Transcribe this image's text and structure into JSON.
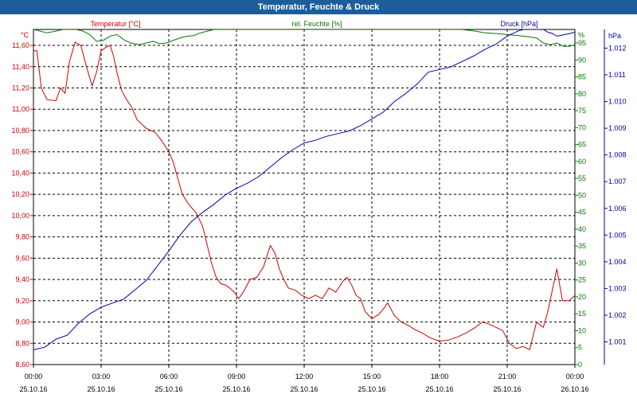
{
  "window": {
    "title": "Temperatur, Feuchte & Druck"
  },
  "colors": {
    "temp": "#cc0000",
    "hum": "#007a00",
    "press": "#0000aa",
    "title_bg": "#1c5e9c"
  },
  "chart_data": {
    "type": "line",
    "title": "Temperatur, Feuchte & Druck",
    "grid": true,
    "legend": "top",
    "x_ticks": [
      {
        "time": "00:00",
        "date": "25.10.16"
      },
      {
        "time": "03:00",
        "date": "25.10.16"
      },
      {
        "time": "06:00",
        "date": "25.10.16"
      },
      {
        "time": "09:00",
        "date": "25.10.16"
      },
      {
        "time": "12:00",
        "date": "25.10.16"
      },
      {
        "time": "15:00",
        "date": "25.10.16"
      },
      {
        "time": "18:00",
        "date": "25.10.16"
      },
      {
        "time": "21:00",
        "date": "25.10.16"
      },
      {
        "time": "00:00",
        "date": "26.10.16"
      }
    ],
    "axes": {
      "temperature": {
        "unit": "°C",
        "label": "Temperatur [°C]",
        "range": [
          8.6,
          11.75
        ],
        "ticks": [
          "8,60",
          "8,80",
          "9,00",
          "9,20",
          "9,40",
          "9,60",
          "9,80",
          "10,00",
          "10,20",
          "10,40",
          "10,60",
          "10,80",
          "11,00",
          "11,20",
          "11,40",
          "11,60"
        ]
      },
      "humidity": {
        "unit": "%",
        "label": "rel. Feuchte [%]",
        "range": [
          0,
          99
        ],
        "ticks": [
          "0",
          "5",
          "10",
          "15",
          "20",
          "25",
          "30",
          "35",
          "40",
          "45",
          "50",
          "55",
          "60",
          "65",
          "70",
          "75",
          "80",
          "85",
          "90",
          "95"
        ],
        "top_unit_label": "%"
      },
      "pressure": {
        "unit": "hPa",
        "label": "Druck [hPa]",
        "range": [
          1000.15,
          1012.7
        ],
        "ticks": [
          "1.001",
          "1.002",
          "1.003",
          "1.004",
          "1.005",
          "1.006",
          "1.007",
          "1.008",
          "1.009",
          "1.010",
          "1.011",
          "1.012"
        ],
        "tick_values": [
          1001,
          1002,
          1003,
          1004,
          1005,
          1006,
          1007,
          1008,
          1009,
          1010,
          1011,
          1012
        ]
      }
    },
    "series": [
      {
        "name": "Temperatur [°C]",
        "axis": "temperature",
        "x_hours": [
          0,
          0.15,
          0.35,
          0.6,
          1.0,
          1.2,
          1.4,
          1.6,
          1.85,
          2.1,
          2.35,
          2.6,
          2.8,
          3.0,
          3.2,
          3.4,
          3.55,
          3.7,
          3.9,
          4.1,
          4.35,
          4.6,
          5.0,
          5.4,
          5.7,
          6.0,
          6.2,
          6.4,
          6.6,
          6.9,
          7.2,
          7.5,
          7.9,
          8.1,
          8.3,
          8.5,
          8.7,
          8.9,
          9.1,
          9.3,
          9.6,
          9.9,
          10.2,
          10.5,
          10.7,
          10.9,
          11.1,
          11.3,
          11.6,
          11.9,
          12.2,
          12.5,
          12.8,
          13.1,
          13.4,
          13.7,
          13.9,
          14.1,
          14.3,
          14.5,
          14.7,
          15.0,
          15.3,
          15.5,
          15.7,
          16.0,
          16.3,
          16.6,
          16.9,
          17.2,
          17.6,
          18.0,
          18.4,
          18.8,
          19.2,
          19.6,
          19.9,
          20.2,
          20.5,
          20.8,
          21.1,
          21.4,
          21.7,
          22.0,
          22.3,
          22.6,
          22.8,
          23.0,
          23.2,
          23.45,
          23.6,
          23.75,
          24.0
        ],
        "values": [
          11.55,
          11.55,
          11.2,
          11.09,
          11.08,
          11.2,
          11.15,
          11.45,
          11.63,
          11.6,
          11.4,
          11.22,
          11.35,
          11.55,
          11.58,
          11.6,
          11.5,
          11.35,
          11.18,
          11.1,
          11.02,
          10.9,
          10.82,
          10.78,
          10.7,
          10.6,
          10.5,
          10.35,
          10.2,
          10.1,
          10.03,
          9.9,
          9.55,
          9.42,
          9.36,
          9.35,
          9.32,
          9.28,
          9.22,
          9.28,
          9.4,
          9.42,
          9.52,
          9.72,
          9.65,
          9.5,
          9.4,
          9.32,
          9.3,
          9.25,
          9.22,
          9.25,
          9.22,
          9.32,
          9.28,
          9.38,
          9.42,
          9.35,
          9.25,
          9.22,
          9.1,
          9.03,
          9.07,
          9.12,
          9.18,
          9.06,
          9.0,
          8.97,
          8.93,
          8.9,
          8.85,
          8.82,
          8.83,
          8.86,
          8.9,
          8.95,
          9.0,
          8.98,
          8.95,
          8.92,
          8.8,
          8.75,
          8.77,
          8.74,
          9.0,
          8.95,
          9.1,
          9.3,
          9.5,
          9.2,
          9.2,
          9.2,
          9.25
        ]
      },
      {
        "name": "rel. Feuchte [%]",
        "axis": "humidity",
        "x_hours": [
          0,
          0.6,
          1.0,
          1.3,
          1.6,
          1.9,
          2.2,
          2.5,
          2.8,
          3.1,
          3.4,
          3.7,
          4.0,
          4.3,
          4.7,
          5.0,
          5.3,
          5.6,
          5.9,
          6.2,
          6.5,
          6.8,
          7.1,
          7.4,
          7.7,
          8.0,
          8.3,
          8.6,
          9.0,
          9.5,
          10.0,
          10.5,
          11.0,
          11.5,
          12.0,
          13.0,
          14.0,
          15.0,
          16.0,
          17.0,
          18.0,
          19.0,
          19.6,
          20.0,
          20.5,
          21.0,
          21.5,
          22.0,
          22.3,
          22.6,
          22.9,
          23.2,
          23.5,
          23.75,
          24.0
        ],
        "values": [
          99,
          98,
          98.5,
          99,
          99,
          99,
          98.5,
          97.5,
          95.5,
          95.8,
          97,
          97.5,
          96,
          95,
          94.5,
          95,
          95.5,
          94.8,
          95,
          95.8,
          96.5,
          97,
          97.2,
          98,
          98.5,
          99,
          99,
          99,
          99,
          99,
          99,
          99,
          99,
          99,
          99,
          99,
          99,
          99,
          99,
          99,
          99,
          99,
          98.5,
          98,
          97.8,
          97.5,
          97.2,
          96.8,
          96.5,
          95,
          94.5,
          95,
          94,
          94,
          94.5
        ]
      },
      {
        "name": "Druck [hPa]",
        "axis": "pressure",
        "x_hours": [
          0,
          0.5,
          1.0,
          1.5,
          2.0,
          2.5,
          3.0,
          3.5,
          4.0,
          4.5,
          5.0,
          5.5,
          6.0,
          6.5,
          7.0,
          7.5,
          8.0,
          8.5,
          9.0,
          9.5,
          10.0,
          10.5,
          11.0,
          11.5,
          12.0,
          12.5,
          13.0,
          13.5,
          14.0,
          14.5,
          15.0,
          15.5,
          16.0,
          16.5,
          17.0,
          17.5,
          18.0,
          18.5,
          19.0,
          19.5,
          20.0,
          20.5,
          21.0,
          21.5,
          22.0,
          22.5,
          22.8,
          23.0,
          23.2,
          23.5,
          23.8,
          24.0
        ],
        "values": [
          1000.7,
          1000.8,
          1001.1,
          1001.25,
          1001.7,
          1002.05,
          1002.3,
          1002.45,
          1002.6,
          1002.95,
          1003.3,
          1003.85,
          1004.4,
          1005.0,
          1005.5,
          1005.85,
          1006.15,
          1006.5,
          1006.75,
          1006.95,
          1007.2,
          1007.55,
          1007.9,
          1008.2,
          1008.45,
          1008.55,
          1008.7,
          1008.8,
          1008.9,
          1009.1,
          1009.35,
          1009.6,
          1010.0,
          1010.3,
          1010.65,
          1011.1,
          1011.2,
          1011.3,
          1011.5,
          1011.7,
          1011.95,
          1012.15,
          1012.45,
          1012.65,
          1012.75,
          1012.75,
          1012.6,
          1012.55,
          1012.45,
          1012.5,
          1012.55,
          1012.6
        ]
      }
    ]
  }
}
